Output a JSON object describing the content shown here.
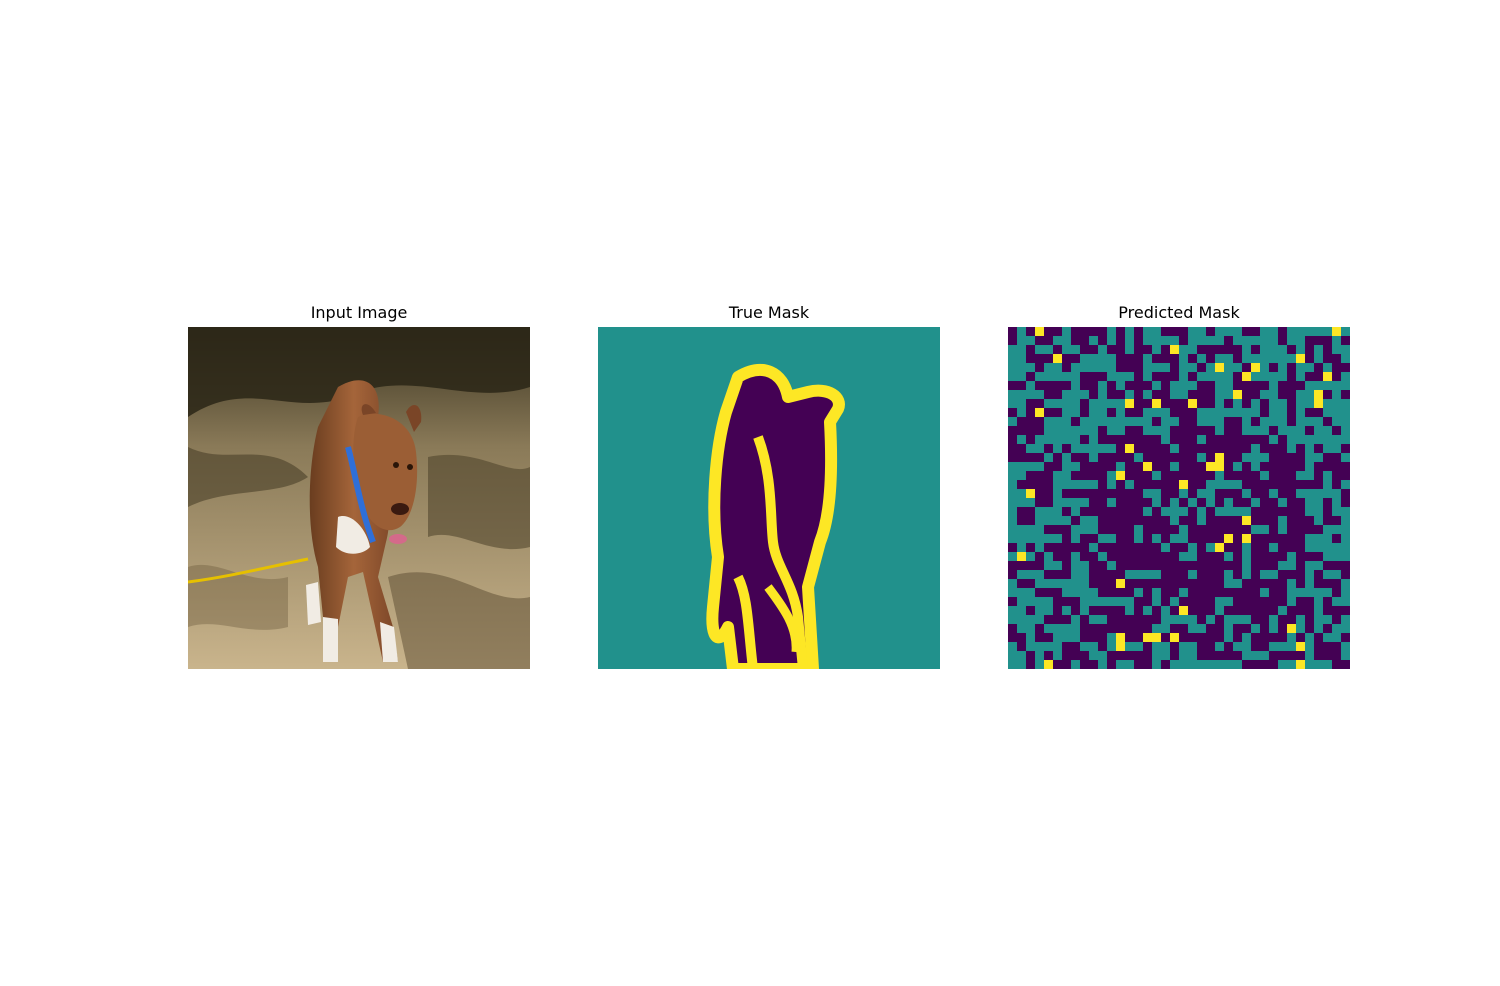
{
  "figure": {
    "panels": [
      {
        "title": "Input Image",
        "content": "photo of a brown-and-white dog wearing a blue harness standing on a shaded dirt path"
      },
      {
        "title": "True Mask",
        "content": "trimap segmentation: background, dog interior, dog boundary"
      },
      {
        "title": "Predicted Mask",
        "content": "noisy blocky segmentation prediction"
      }
    ]
  },
  "colors": {
    "background_class": "#21918c",
    "object_class": "#440154",
    "boundary_class": "#fde725"
  }
}
